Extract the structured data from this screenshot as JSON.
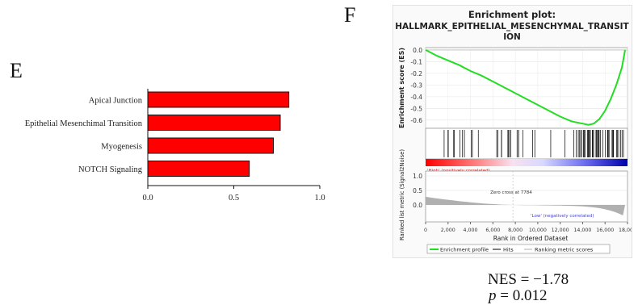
{
  "panels": {
    "e_letter": "E",
    "f_letter": "F"
  },
  "chart_data": [
    {
      "type": "bar",
      "orientation": "horizontal",
      "categories": [
        "Apical Junction",
        "Epithelial Mesenchimal Transition",
        "Myogenesis",
        "NOTCH Signaling"
      ],
      "values": [
        0.82,
        0.77,
        0.73,
        0.59
      ],
      "xlim": [
        0,
        1.0
      ],
      "xticks": [
        0.0,
        0.5,
        1.0
      ],
      "xtick_labels": [
        "0.0",
        "0.5",
        "1.0"
      ],
      "title": "",
      "xlabel": "",
      "ylabel": "",
      "colors": {
        "bar": "#ff0000",
        "edge": "#111111"
      }
    },
    {
      "type": "line",
      "title_line1": "Enrichment plot:",
      "title_line2": "HALLMARK_EPITHELIAL_MESENCHYMAL_TRANSIT",
      "title_line3": "ION",
      "ylabel_top": "Enrichment score (ES)",
      "ylabel_bottom": "Ranked list metric (Signal2Noise)",
      "xlabel": "Rank in Ordered Dataset",
      "es_yticks": [
        "0.0",
        "-0.1",
        "-0.2",
        "-0.3",
        "-0.4",
        "-0.5",
        "-0.6"
      ],
      "metric_yticks": [
        "1.0",
        "0.5",
        "0.0"
      ],
      "xticks": [
        "0",
        "2,000",
        "4,000",
        "6,000",
        "8,000",
        "10,000",
        "12,000",
        "14,000",
        "16,000",
        "18,000"
      ],
      "xlim": [
        0,
        18000
      ],
      "es_ylim": [
        -0.67,
        0.02
      ],
      "es_curve": {
        "x": [
          0,
          1000,
          2000,
          3000,
          4000,
          5000,
          6000,
          7000,
          8000,
          9000,
          10000,
          11000,
          12000,
          13000,
          13500,
          14000,
          14500,
          15000,
          15500,
          16000,
          16500,
          17000,
          17500,
          17784
        ],
        "y": [
          0.0,
          -0.05,
          -0.09,
          -0.13,
          -0.18,
          -0.22,
          -0.27,
          -0.32,
          -0.37,
          -0.42,
          -0.47,
          -0.52,
          -0.57,
          -0.61,
          -0.62,
          -0.63,
          -0.64,
          -0.63,
          -0.59,
          -0.52,
          -0.42,
          -0.3,
          -0.15,
          0.0
        ]
      },
      "high_label": "'High' (positively correlated)",
      "low_label": "'Low' (negatively correlated)",
      "zero_cross_label": "Zero cross at 7784",
      "zero_cross_x": 7784,
      "legend": [
        "Enrichment profile",
        "Hits",
        "Ranking metric scores"
      ],
      "colors": {
        "es": "#22dd22",
        "hits": "#000000",
        "metric": "#b0b0b0",
        "high": "#ff0000",
        "low": "#0000aa",
        "low_text": "#4444cc",
        "high_text": "#cc2222"
      }
    }
  ],
  "stats": {
    "nes_label": "NES = −1.78",
    "p_symbol": "p",
    "p_rest": " = 0.012"
  }
}
